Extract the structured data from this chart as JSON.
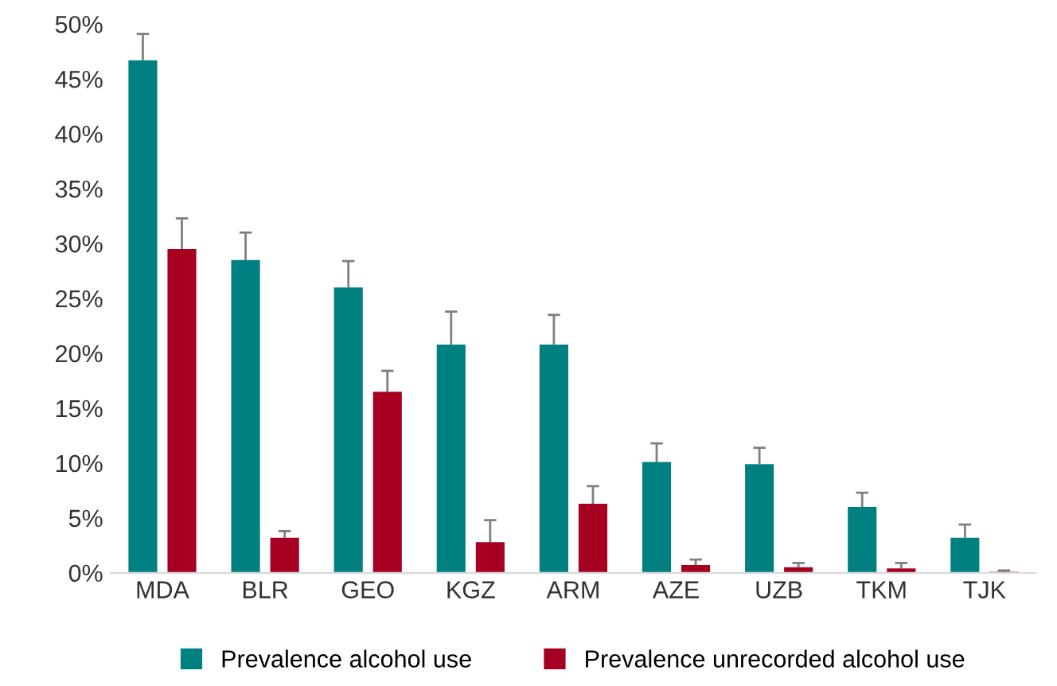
{
  "chart_data": {
    "type": "bar",
    "categories": [
      "MDA",
      "BLR",
      "GEO",
      "KGZ",
      "ARM",
      "AZE",
      "UZB",
      "TKM",
      "TJK"
    ],
    "series": [
      {
        "name": "Prevalence alcohol use",
        "color": "#008080",
        "values": [
          46.7,
          28.5,
          26.0,
          20.8,
          20.8,
          10.1,
          9.9,
          6.0,
          3.2
        ],
        "errors": [
          [
            46.7,
            49.1
          ],
          [
            28.5,
            31.0
          ],
          [
            26.0,
            28.4
          ],
          [
            20.8,
            23.8
          ],
          [
            20.8,
            23.5
          ],
          [
            10.1,
            11.8
          ],
          [
            9.9,
            11.4
          ],
          [
            6.0,
            7.3
          ],
          [
            3.2,
            4.4
          ]
        ]
      },
      {
        "name": "Prevalence unrecorded alcohol use",
        "color": "#a50021",
        "values": [
          29.5,
          3.2,
          16.5,
          2.8,
          6.3,
          0.7,
          0.5,
          0.4,
          0.1
        ],
        "errors": [
          [
            29.5,
            32.3
          ],
          [
            3.2,
            3.8
          ],
          [
            16.5,
            18.4
          ],
          [
            2.8,
            4.8
          ],
          [
            6.3,
            7.9
          ],
          [
            0.7,
            1.2
          ],
          [
            0.5,
            0.9
          ],
          [
            0.4,
            0.9
          ],
          [
            0.1,
            0.2
          ]
        ]
      }
    ],
    "ylim": [
      0,
      50
    ],
    "yticks": [
      {
        "value": 0,
        "label": "0%"
      },
      {
        "value": 5,
        "label": "5%"
      },
      {
        "value": 10,
        "label": "10%"
      },
      {
        "value": 15,
        "label": "15%"
      },
      {
        "value": 20,
        "label": "20%"
      },
      {
        "value": 25,
        "label": "25%"
      },
      {
        "value": 30,
        "label": "30%"
      },
      {
        "value": 35,
        "label": "35%"
      },
      {
        "value": 40,
        "label": "40%"
      },
      {
        "value": 45,
        "label": "45%"
      },
      {
        "value": 50,
        "label": "50%"
      }
    ],
    "grid": false,
    "legend": "bottom"
  }
}
